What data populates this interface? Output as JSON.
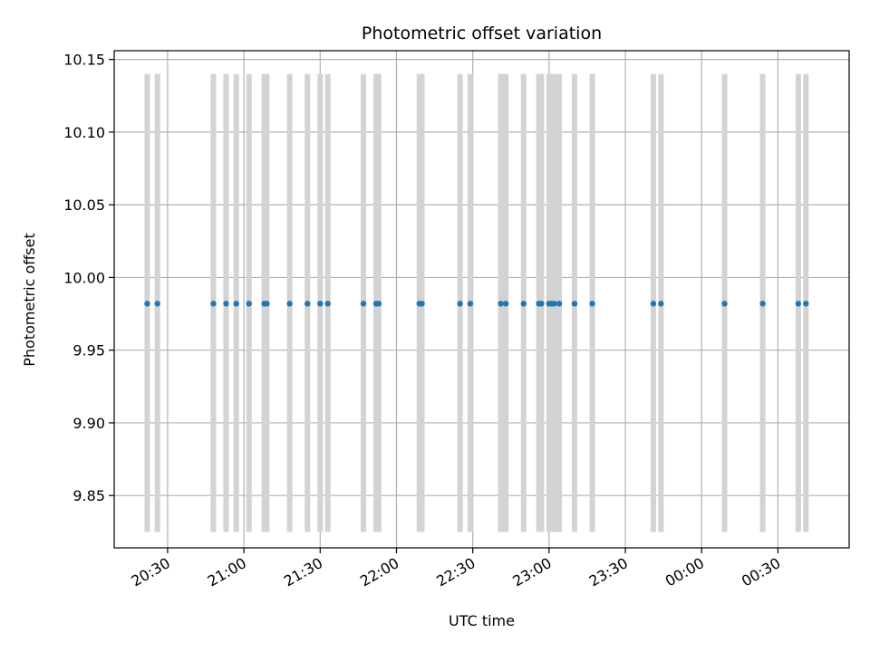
{
  "chart_data": {
    "type": "scatter",
    "title": "Photometric offset variation",
    "xlabel": "UTC time",
    "ylabel": "Photometric offset",
    "ylim": [
      9.814,
      10.156
    ],
    "xlim": [
      "20:09",
      "00:58"
    ],
    "grid": true,
    "legend": "none",
    "x_ticks": [
      "20:30",
      "21:00",
      "21:30",
      "22:00",
      "22:30",
      "23:00",
      "23:30",
      "00:00",
      "00:30"
    ],
    "y_ticks": [
      9.85,
      9.9,
      9.95,
      10.0,
      10.05,
      10.1,
      10.15
    ],
    "y_tick_labels": [
      "9.85",
      "9.90",
      "9.95",
      "10.00",
      "10.05",
      "10.10",
      "10.15"
    ],
    "vspan_y": [
      9.825,
      10.14
    ],
    "colors": {
      "points": "#1f77b4",
      "bands": "#d3d3d3",
      "grid": "#b0b0b0"
    },
    "series": [
      {
        "x": [
          "20:22",
          "20:26",
          "20:48",
          "20:53",
          "20:57",
          "21:02",
          "21:08",
          "21:09",
          "21:18",
          "21:25",
          "21:30",
          "21:33",
          "21:47",
          "21:52",
          "21:53",
          "22:09",
          "22:10",
          "22:25",
          "22:29",
          "22:41",
          "22:43",
          "22:50",
          "22:56",
          "22:57",
          "23:00",
          "23:01",
          "23:02",
          "23:04",
          "23:10",
          "23:17",
          "23:41",
          "23:44",
          "00:09",
          "00:24",
          "00:38",
          "00:41"
        ],
        "y": [
          9.982,
          9.982,
          9.982,
          9.982,
          9.982,
          9.982,
          9.982,
          9.982,
          9.982,
          9.982,
          9.982,
          9.982,
          9.982,
          9.982,
          9.982,
          9.982,
          9.982,
          9.982,
          9.982,
          9.982,
          9.982,
          9.982,
          9.982,
          9.982,
          9.982,
          9.982,
          9.982,
          9.982,
          9.982,
          9.982,
          9.982,
          9.982,
          9.982,
          9.982,
          9.982,
          9.982
        ]
      }
    ]
  }
}
